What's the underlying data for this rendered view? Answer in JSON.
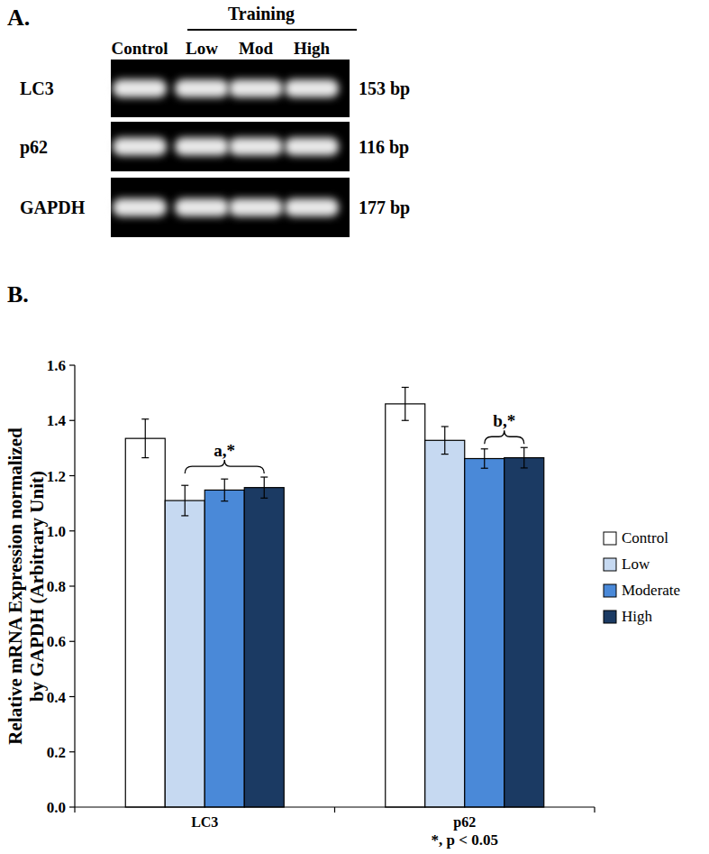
{
  "panel_a": {
    "label": "A.",
    "group_label": "Training",
    "lanes": [
      "Control",
      "Low",
      "Mod",
      "High"
    ],
    "rows": [
      {
        "name": "LC3",
        "size": "153 bp"
      },
      {
        "name": "p62",
        "size": "116 bp"
      },
      {
        "name": "GAPDH",
        "size": "177 bp"
      }
    ]
  },
  "chart_data": {
    "type": "bar",
    "panel_label": "B.",
    "categories": [
      "LC3",
      "p62"
    ],
    "series": [
      {
        "name": "Control",
        "color": "#ffffff",
        "values": [
          1.335,
          1.46
        ],
        "errors": [
          0.07,
          0.06
        ]
      },
      {
        "name": "Low",
        "color": "#c6d9f1",
        "values": [
          1.11,
          1.328
        ],
        "errors": [
          0.055,
          0.05
        ]
      },
      {
        "name": "Moderate",
        "color": "#4a89d8",
        "values": [
          1.148,
          1.262
        ],
        "errors": [
          0.04,
          0.035
        ]
      },
      {
        "name": "High",
        "color": "#1b3a63",
        "values": [
          1.157,
          1.265
        ],
        "errors": [
          0.038,
          0.037
        ]
      }
    ],
    "ylim": [
      0,
      1.6
    ],
    "yticks": [
      {
        "value": 0,
        "label": "0.0"
      },
      0.2,
      0.4,
      0.6,
      0.8,
      {
        "value": 1,
        "label": "1.0"
      },
      1.2,
      1.4,
      1.6
    ],
    "ylabel_lines": [
      "Relative  mRNA Expression normalized",
      "by GAPDH (Arbitrary Unit)"
    ],
    "annotations": [
      {
        "text": "a,*",
        "category": "LC3",
        "span": [
          "Low",
          "High"
        ]
      },
      {
        "text": "b,*",
        "category": "p62",
        "span": [
          "Moderate",
          "High"
        ]
      }
    ],
    "footnote": "*,  p < 0.05",
    "legend": "right"
  }
}
